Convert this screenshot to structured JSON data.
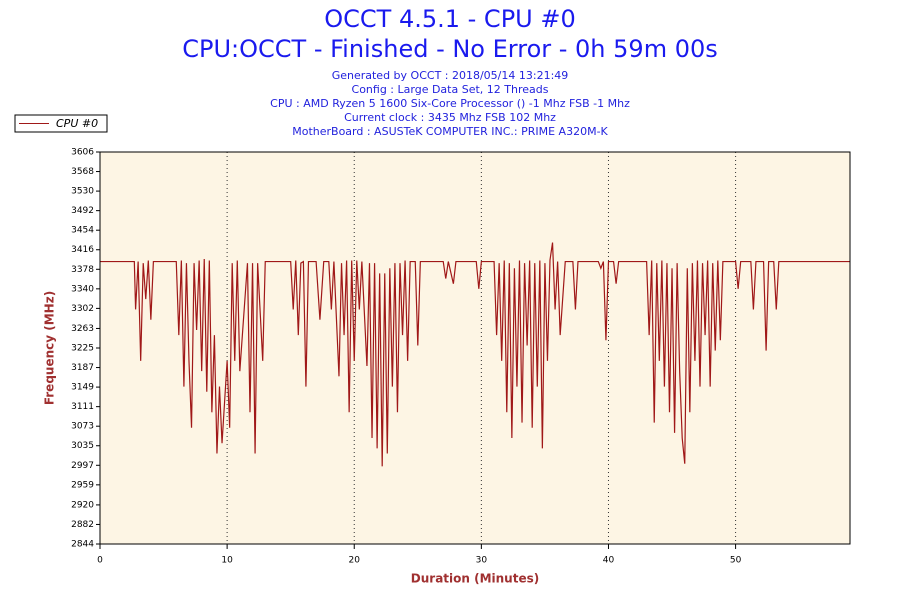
{
  "chart_data": {
    "type": "line",
    "title": "OCCT 4.5.1 - CPU #0",
    "subtitle": "CPU:OCCT - Finished - No Error - 0h 59m 00s",
    "info": [
      "Generated by OCCT : 2018/05/14 13:21:49",
      "Config : Large Data Set, 12 Threads",
      "CPU : AMD Ryzen 5 1600 Six-Core Processor () -1 Mhz FSB -1 Mhz",
      "Current clock : 3435 Mhz FSB 102 Mhz",
      "MotherBoard : ASUSTeK COMPUTER INC.: PRIME A320M-K"
    ],
    "xlabel": "Duration (Minutes)",
    "ylabel": "Frequency (MHz)",
    "xlim": [
      0,
      59
    ],
    "xticks": [
      0,
      10,
      20,
      30,
      40,
      50
    ],
    "ylim": [
      2844,
      3606
    ],
    "yticks": [
      2844,
      2882,
      2920,
      2959,
      2997,
      3035,
      3073,
      3111,
      3149,
      3187,
      3225,
      3263,
      3302,
      3340,
      3378,
      3416,
      3454,
      3492,
      3530,
      3568,
      3606
    ],
    "grid": true,
    "x": [
      0,
      2.7,
      2.8,
      3.0,
      3.2,
      3.4,
      3.6,
      3.8,
      4.0,
      4.2,
      4.4,
      6.0,
      6.2,
      6.4,
      6.6,
      6.8,
      7.0,
      7.2,
      7.4,
      7.6,
      7.8,
      8.0,
      8.2,
      8.4,
      8.6,
      8.8,
      9.0,
      9.2,
      9.4,
      9.6,
      9.8,
      10.0,
      10.2,
      10.4,
      10.6,
      10.8,
      11.0,
      11.2,
      11.6,
      11.8,
      12.0,
      12.2,
      12.4,
      12.8,
      13.0,
      15.0,
      15.2,
      15.4,
      15.6,
      15.8,
      16.0,
      16.2,
      16.4,
      17.0,
      17.3,
      17.6,
      18.0,
      18.2,
      18.4,
      18.8,
      19.0,
      19.2,
      19.4,
      19.6,
      19.8,
      20.0,
      20.2,
      20.4,
      20.6,
      21.0,
      21.2,
      21.4,
      21.6,
      21.8,
      22.0,
      22.2,
      22.4,
      22.6,
      22.8,
      23.0,
      23.2,
      23.4,
      23.6,
      23.8,
      24.0,
      24.2,
      24.4,
      24.8,
      25.0,
      25.2,
      27.0,
      27.2,
      27.4,
      27.8,
      28.0,
      29.6,
      29.8,
      30.0,
      31.0,
      31.2,
      31.4,
      31.6,
      31.8,
      32.0,
      32.2,
      32.4,
      32.6,
      32.8,
      33.0,
      33.2,
      33.4,
      33.6,
      33.8,
      34.0,
      34.2,
      34.4,
      34.6,
      34.8,
      35.0,
      35.2,
      35.4,
      35.6,
      35.8,
      36.0,
      36.2,
      36.6,
      37.2,
      37.4,
      37.6,
      39.2,
      39.4,
      39.6,
      39.8,
      40.0,
      40.4,
      40.6,
      40.8,
      43.0,
      43.2,
      43.4,
      43.6,
      43.8,
      44.0,
      44.2,
      44.4,
      44.6,
      44.8,
      45.0,
      45.2,
      45.4,
      45.6,
      45.8,
      46.0,
      46.2,
      46.4,
      46.6,
      46.8,
      47.0,
      47.2,
      47.4,
      47.6,
      47.8,
      48.0,
      48.2,
      48.4,
      48.6,
      48.8,
      49.0,
      50.0,
      50.2,
      50.4,
      51.2,
      51.4,
      51.6,
      52.2,
      52.4,
      52.6,
      53.0,
      53.2,
      53.4,
      59.0
    ],
    "series": [
      {
        "name": "CPU #0",
        "color": "#a01818",
        "values": [
          3393,
          3393,
          3300,
          3393,
          3200,
          3390,
          3320,
          3395,
          3280,
          3393,
          3393,
          3393,
          3250,
          3395,
          3150,
          3390,
          3200,
          3070,
          3390,
          3260,
          3395,
          3180,
          3398,
          3140,
          3395,
          3100,
          3250,
          3020,
          3150,
          3040,
          3120,
          3200,
          3070,
          3390,
          3200,
          3395,
          3180,
          3250,
          3390,
          3100,
          3390,
          3020,
          3390,
          3200,
          3393,
          3393,
          3300,
          3395,
          3250,
          3390,
          3393,
          3150,
          3393,
          3393,
          3280,
          3393,
          3393,
          3300,
          3393,
          3170,
          3390,
          3250,
          3395,
          3100,
          3395,
          3200,
          3395,
          3300,
          3393,
          3190,
          3390,
          3050,
          3390,
          3030,
          3370,
          2995,
          3370,
          3020,
          3380,
          3150,
          3390,
          3100,
          3390,
          3250,
          3395,
          3200,
          3393,
          3393,
          3230,
          3393,
          3393,
          3360,
          3393,
          3350,
          3393,
          3393,
          3340,
          3393,
          3393,
          3250,
          3390,
          3200,
          3395,
          3100,
          3390,
          3050,
          3380,
          3150,
          3395,
          3080,
          3390,
          3230,
          3395,
          3070,
          3390,
          3150,
          3395,
          3030,
          3390,
          3200,
          3396,
          3430,
          3300,
          3393,
          3250,
          3393,
          3393,
          3300,
          3393,
          3393,
          3380,
          3393,
          3240,
          3393,
          3393,
          3350,
          3393,
          3393,
          3250,
          3395,
          3080,
          3390,
          3200,
          3395,
          3150,
          3390,
          3100,
          3380,
          3060,
          3390,
          3180,
          3050,
          3000,
          3380,
          3100,
          3390,
          3200,
          3395,
          3150,
          3390,
          3250,
          3395,
          3150,
          3390,
          3220,
          3395,
          3240,
          3393,
          3393,
          3340,
          3393,
          3393,
          3300,
          3393,
          3393,
          3220,
          3393,
          3393,
          3300,
          3393,
          3393
        ]
      }
    ]
  }
}
